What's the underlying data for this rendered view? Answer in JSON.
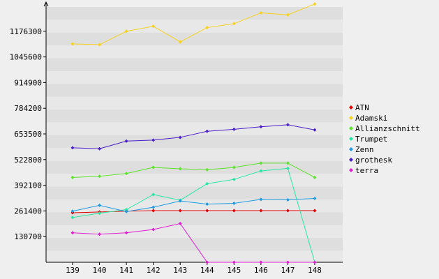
{
  "chart_data": {
    "type": "line",
    "title": "",
    "xlabel": "",
    "ylabel": "",
    "categories": [
      "139",
      "140",
      "141",
      "142",
      "143",
      "144",
      "145",
      "146",
      "147",
      "148"
    ],
    "y_ticks": [
      130700,
      261400,
      392100,
      522800,
      653500,
      784200,
      914900,
      1045600,
      1176300
    ],
    "ylim": [
      0,
      1300000
    ],
    "grid": "horizontal alternating bands",
    "legend_position": "right",
    "series": [
      {
        "name": "ATN",
        "color": "#e00000",
        "values": [
          252000,
          256000,
          260000,
          263000,
          263000,
          263000,
          263000,
          263000,
          263000,
          263000
        ]
      },
      {
        "name": "Adamski",
        "color": "#f7d21c",
        "values": [
          1112000,
          1108000,
          1176000,
          1202000,
          1122000,
          1195000,
          1215000,
          1270000,
          1260000,
          1315000
        ]
      },
      {
        "name": "Allianzschnitt",
        "color": "#5be328",
        "values": [
          432000,
          438000,
          452000,
          483000,
          476000,
          471000,
          483000,
          505000,
          505000,
          432000
        ]
      },
      {
        "name": "Trumpet",
        "color": "#27e8a3",
        "values": [
          228000,
          250000,
          268000,
          345000,
          316000,
          400000,
          422000,
          465000,
          478000,
          0
        ]
      },
      {
        "name": "Zenn",
        "color": "#1e9be1",
        "values": [
          260000,
          290000,
          258000,
          280000,
          312000,
          296000,
          300000,
          320000,
          318000,
          325000
        ]
      },
      {
        "name": "grothesk",
        "color": "#4a1ec9",
        "values": [
          583000,
          578000,
          617000,
          622000,
          636000,
          667000,
          677000,
          690000,
          700000,
          674000
        ]
      },
      {
        "name": "terra",
        "color": "#e01ed3",
        "values": [
          150000,
          143000,
          150000,
          167000,
          197000,
          0,
          0,
          0,
          0,
          0
        ]
      }
    ]
  }
}
